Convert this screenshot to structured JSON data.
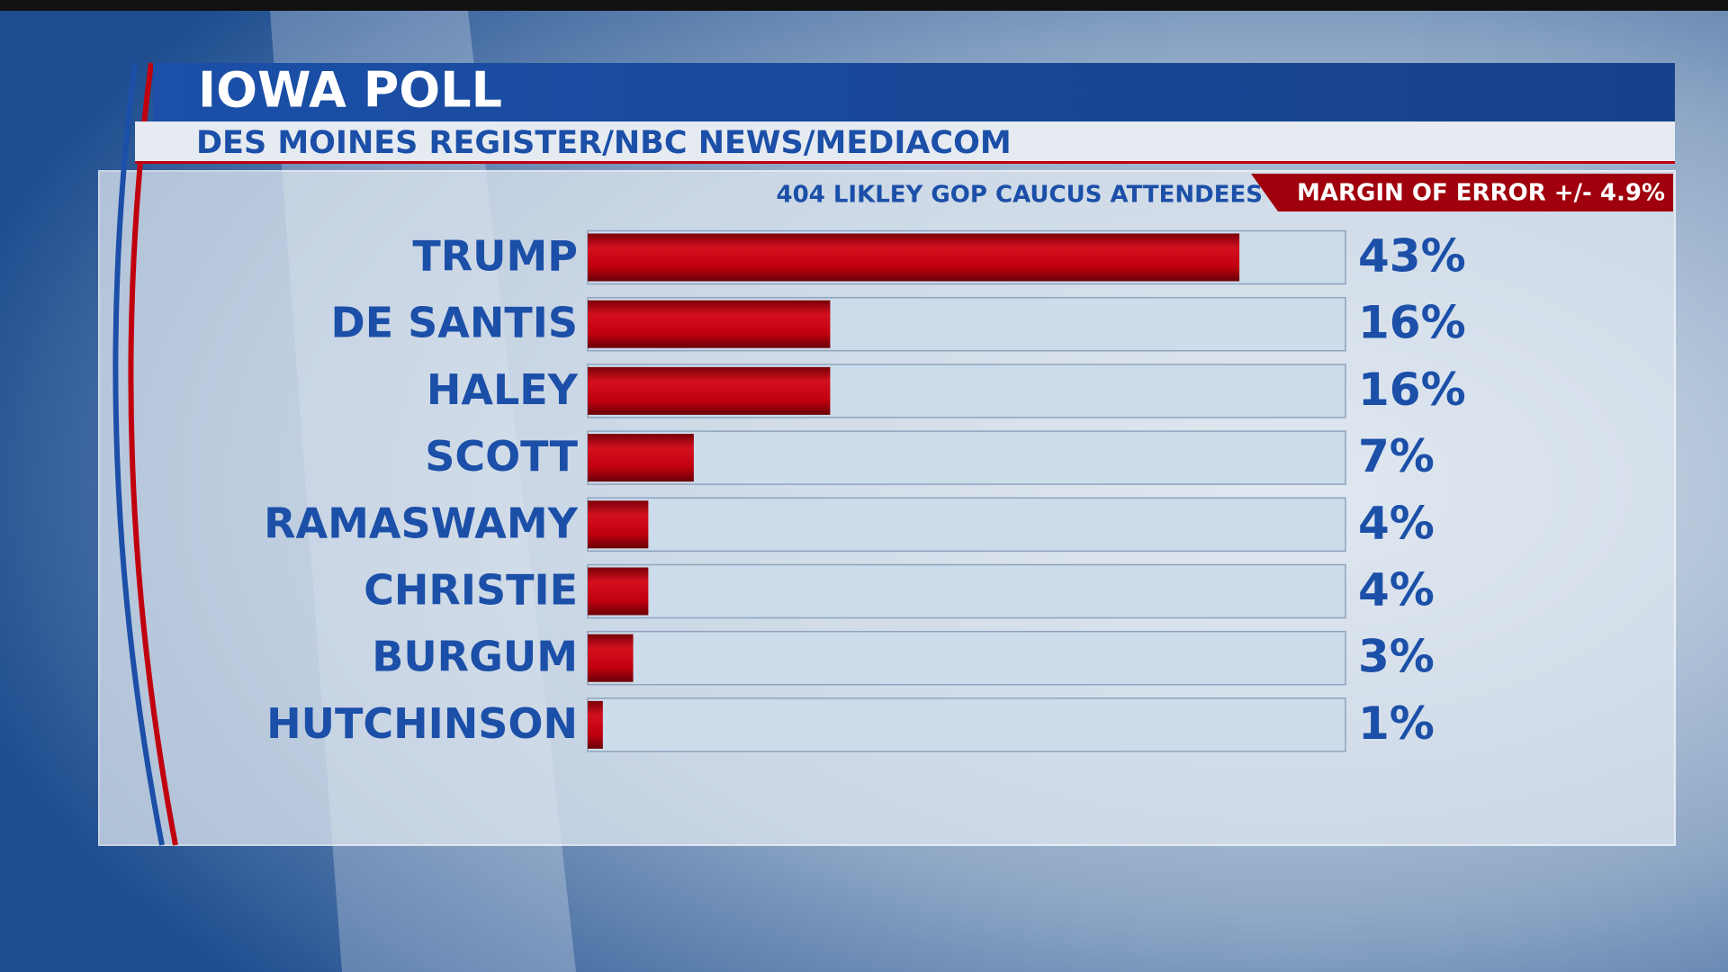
{
  "chart_data": {
    "type": "bar",
    "orientation": "horizontal",
    "title": "IOWA POLL",
    "subtitle": "DES MOINES REGISTER/NBC NEWS/MEDIACOM",
    "note": "404 LIKLEY GOP CAUCUS ATTENDEES",
    "margin_of_error": "MARGIN OF ERROR +/- 4.9%",
    "categories": [
      "TRUMP",
      "DE SANTIS",
      "HALEY",
      "SCOTT",
      "RAMASWAMY",
      "CHRISTIE",
      "BURGUM",
      "HUTCHINSON"
    ],
    "values": [
      43,
      16,
      16,
      7,
      4,
      4,
      3,
      1
    ],
    "value_labels": [
      "43%",
      "16%",
      "16%",
      "7%",
      "4%",
      "4%",
      "3%",
      "1%"
    ],
    "color": "#c0000f",
    "xlim": [
      0,
      50
    ]
  }
}
